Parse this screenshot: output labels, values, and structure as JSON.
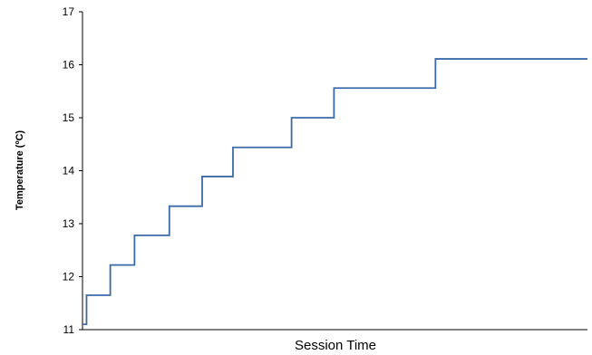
{
  "chart_data": {
    "type": "line",
    "title": "",
    "xlabel": "Session Time",
    "ylabel": "Temperature (ºC)",
    "ylim": [
      11,
      17
    ],
    "yticks": [
      "11",
      "12",
      "13",
      "14",
      "15",
      "16",
      "17"
    ],
    "grid": false,
    "line_color": "#3b6aa8",
    "series": [
      {
        "x": [
          0.0,
          0.008,
          0.008,
          0.055,
          0.055,
          0.103,
          0.103,
          0.172,
          0.172,
          0.237,
          0.237,
          0.298,
          0.298,
          0.414,
          0.414,
          0.498,
          0.498,
          0.699,
          0.699,
          1.0
        ],
        "values": [
          11.1,
          11.1,
          11.65,
          11.65,
          12.22,
          12.22,
          12.78,
          12.78,
          13.33,
          13.33,
          13.89,
          13.89,
          14.44,
          14.44,
          15.0,
          15.0,
          15.56,
          15.56,
          16.11,
          16.11
        ]
      }
    ]
  }
}
